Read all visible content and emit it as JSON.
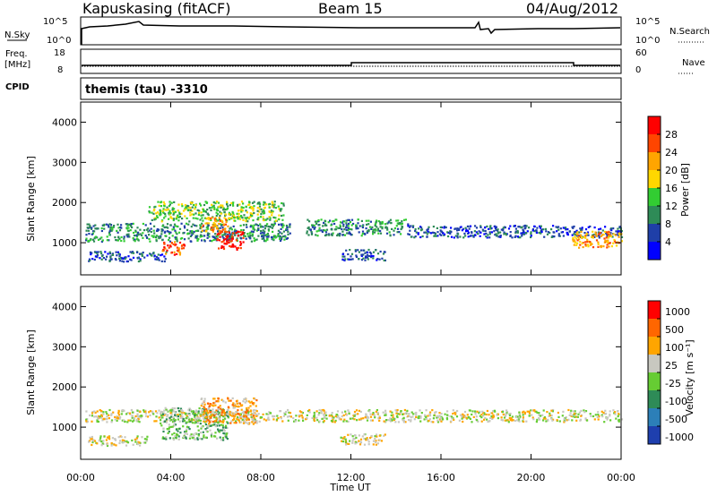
{
  "header": {
    "station": "Kapuskasing (fitACF)",
    "beam": "Beam 15",
    "date": "04/Aug/2012"
  },
  "noise_panel": {
    "left_label": "N.Sky",
    "right_label": "N.Search",
    "ticks": [
      "10^5",
      "10^0"
    ]
  },
  "freq_panel": {
    "left_label_1": "Freq.",
    "left_label_2": "[MHz]",
    "left_ticks": [
      "18",
      "8"
    ],
    "right_label": "Nave",
    "right_ticks": [
      "60",
      "0"
    ]
  },
  "cpid_panel": {
    "label": "CPID",
    "text": "themis (tau) -3310"
  },
  "chart_data": [
    {
      "type": "heatmap",
      "panel": "power",
      "xlabel": "Time UT",
      "ylabel": "Slant Range [km]",
      "x_ticks": [
        "00:00",
        "04:00",
        "08:00",
        "12:00",
        "16:00",
        "20:00",
        "00:00"
      ],
      "y_ticks": [
        "1000",
        "2000",
        "3000",
        "4000"
      ],
      "ylim": [
        200,
        4500
      ],
      "xlim_hours": [
        0,
        24
      ],
      "colorbar": {
        "label": "Power [dB]",
        "ticks": [
          "28",
          "24",
          "20",
          "16",
          "12",
          "8",
          "4"
        ],
        "colors": [
          "#0000ff",
          "#1f3fa8",
          "#2e8b57",
          "#32cd32",
          "#ffd700",
          "#ffa500",
          "#ff4500",
          "#ff0000"
        ]
      },
      "echo_regions": [
        {
          "t0": 0.2,
          "t1": 9.3,
          "r0": 1050,
          "r1": 1500,
          "level": 2
        },
        {
          "t0": 3.0,
          "t1": 9.0,
          "r0": 1550,
          "r1": 2050,
          "level": 3
        },
        {
          "t0": 0.3,
          "t1": 3.8,
          "r0": 550,
          "r1": 800,
          "level": 1
        },
        {
          "t0": 3.6,
          "t1": 4.6,
          "r0": 700,
          "r1": 1050,
          "level": 6
        },
        {
          "t0": 6.0,
          "t1": 7.2,
          "r0": 850,
          "r1": 1300,
          "level": 7
        },
        {
          "t0": 5.3,
          "t1": 6.5,
          "r0": 1300,
          "r1": 1650,
          "level": 5
        },
        {
          "t0": 10.0,
          "t1": 14.5,
          "r0": 1200,
          "r1": 1600,
          "level": 2
        },
        {
          "t0": 11.5,
          "t1": 13.5,
          "r0": 580,
          "r1": 850,
          "level": 1
        },
        {
          "t0": 14.5,
          "t1": 24.0,
          "r0": 1150,
          "r1": 1450,
          "level": 1
        },
        {
          "t0": 21.8,
          "t1": 24.0,
          "r0": 900,
          "r1": 1300,
          "level": 5
        }
      ]
    },
    {
      "type": "heatmap",
      "panel": "velocity",
      "xlabel": "Time UT",
      "ylabel": "Slant Range [km]",
      "x_ticks": [
        "00:00",
        "04:00",
        "08:00",
        "12:00",
        "16:00",
        "20:00",
        "00:00"
      ],
      "y_ticks": [
        "1000",
        "2000",
        "3000",
        "4000"
      ],
      "ylim": [
        200,
        4500
      ],
      "xlim_hours": [
        0,
        24
      ],
      "colorbar": {
        "label": "Velocity [m s⁻¹]",
        "ticks": [
          "1000",
          "500",
          "100",
          "25",
          "-25",
          "-100",
          "-500",
          "-1000"
        ],
        "colors": [
          "#1e3fae",
          "#2c7fb8",
          "#2e8b57",
          "#66cc33",
          "#c8c8c0",
          "#ffa500",
          "#ff6600",
          "#ff0000"
        ]
      },
      "echo_regions": [
        {
          "t0": 0.2,
          "t1": 24.0,
          "r0": 1150,
          "r1": 1450,
          "level": 4
        },
        {
          "t0": 3.5,
          "t1": 6.5,
          "r0": 700,
          "r1": 1500,
          "level": 3
        },
        {
          "t0": 5.3,
          "t1": 7.8,
          "r0": 1100,
          "r1": 1750,
          "level": 5
        },
        {
          "t0": 0.3,
          "t1": 3.0,
          "r0": 550,
          "r1": 800,
          "level": 4
        },
        {
          "t0": 11.5,
          "t1": 13.5,
          "r0": 580,
          "r1": 850,
          "level": 4
        }
      ]
    }
  ]
}
